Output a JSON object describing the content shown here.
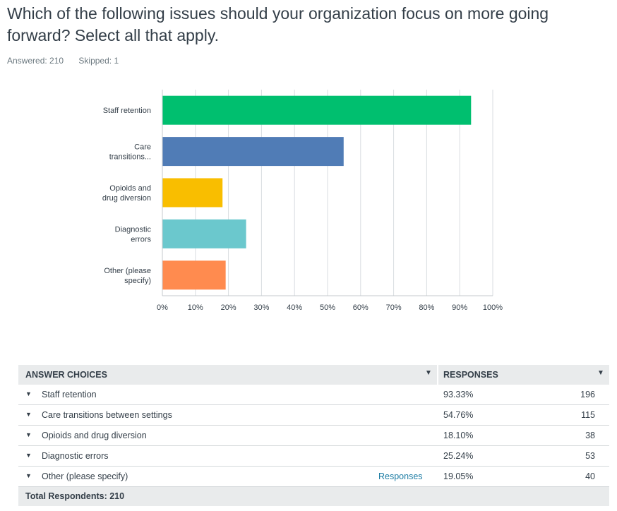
{
  "question": {
    "title": "Which of the following issues should your organization focus on more going forward? Select all that apply.",
    "answered": "Answered: 210",
    "skipped": "Skipped: 1"
  },
  "colors": {
    "staff_retention": "#00bf6f",
    "care_transitions": "#507cb6",
    "opioids": "#f9be00",
    "diagnostic": "#6bc8cd",
    "other": "#ff8b4f",
    "grid": "#d9dde0",
    "axis": "#c4c9cc"
  },
  "chart_data": {
    "type": "bar",
    "orientation": "horizontal",
    "categories": [
      "Staff retention",
      "Care transitions...",
      "Opioids and drug diversion",
      "Diagnostic errors",
      "Other (please specify)"
    ],
    "category_lines": [
      [
        "Staff retention"
      ],
      [
        "Care",
        "transitions..."
      ],
      [
        "Opioids and",
        "drug diversion"
      ],
      [
        "Diagnostic",
        "errors"
      ],
      [
        "Other (please",
        "specify)"
      ]
    ],
    "values": [
      93.33,
      54.76,
      18.1,
      25.24,
      19.05
    ],
    "xlim": [
      0,
      100
    ],
    "xticks": [
      "0%",
      "10%",
      "20%",
      "30%",
      "40%",
      "50%",
      "60%",
      "70%",
      "80%",
      "90%",
      "100%"
    ],
    "grid": true,
    "legend": "none"
  },
  "table": {
    "header_choice": "ANSWER CHOICES",
    "header_responses": "RESPONSES",
    "rows": [
      {
        "label": "Staff retention",
        "pct": "93.33%",
        "count": "196"
      },
      {
        "label": "Care transitions between settings",
        "pct": "54.76%",
        "count": "115"
      },
      {
        "label": "Opioids and drug diversion",
        "pct": "18.10%",
        "count": "38"
      },
      {
        "label": "Diagnostic errors",
        "pct": "25.24%",
        "count": "53"
      },
      {
        "label": "Other (please specify)",
        "pct": "19.05%",
        "count": "40",
        "link": "Responses"
      }
    ],
    "footer": "Total Respondents: 210"
  }
}
